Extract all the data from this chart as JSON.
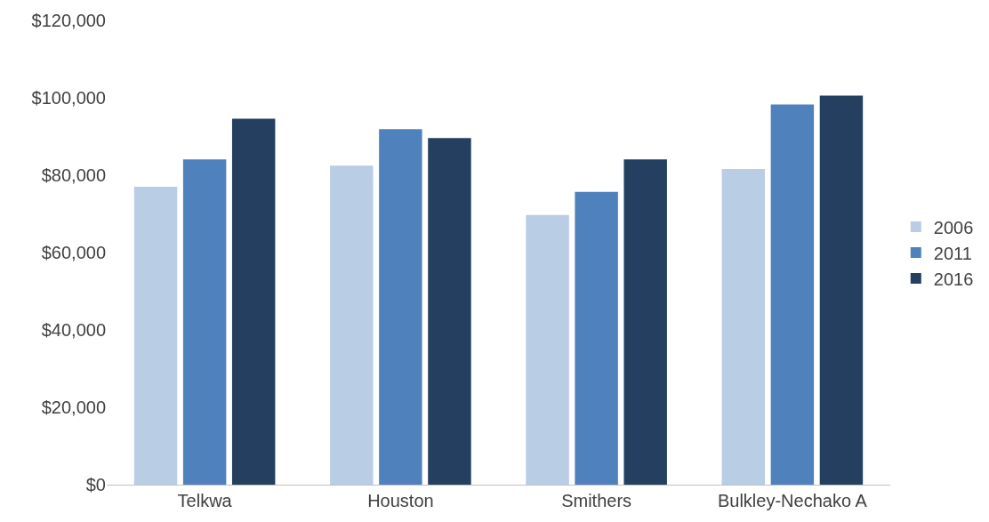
{
  "chart_data": {
    "type": "bar",
    "categories": [
      "Telkwa",
      "Houston",
      "Smithers",
      "Bulkley-Nechako A"
    ],
    "series": [
      {
        "name": "2006",
        "color": "#b9cde5",
        "values": [
          77000,
          82500,
          69700,
          81600
        ]
      },
      {
        "name": "2011",
        "color": "#4f81bd",
        "values": [
          84100,
          91900,
          75700,
          98300
        ]
      },
      {
        "name": "2016",
        "color": "#243f60",
        "values": [
          94600,
          89600,
          84100,
          100600
        ]
      }
    ],
    "ylim": [
      0,
      120000
    ],
    "yticks": [
      {
        "value": 0,
        "label": "$0"
      },
      {
        "value": 20000,
        "label": "$20,000"
      },
      {
        "value": 40000,
        "label": "$40,000"
      },
      {
        "value": 60000,
        "label": "$60,000"
      },
      {
        "value": 80000,
        "label": "$80,000"
      },
      {
        "value": 100000,
        "label": "$100,000"
      },
      {
        "value": 120000,
        "label": "$120,000"
      }
    ],
    "legend": "right"
  }
}
